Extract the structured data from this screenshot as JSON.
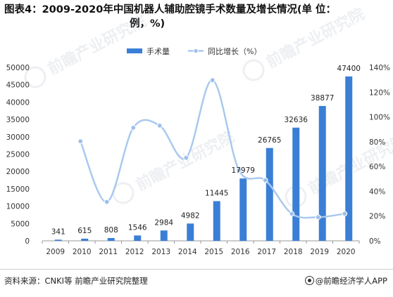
{
  "title": {
    "line1": "图表4：2009-2020年中国机器人辅助腔镜手术数量及增长情况(单 位：",
    "line2": "例，%)"
  },
  "watermark": {
    "text": "前瞻产业研究院"
  },
  "source": "资料来源：CNKI等 前瞻产业研究院整理",
  "brand": "@前瞻经济学人APP",
  "colors": {
    "bar": "#3a7fd6",
    "line": "#a9c9ef",
    "marker": "#9fbfea",
    "axis": "#999999"
  },
  "chart_data": {
    "type": "bar+line",
    "categories": [
      "2009",
      "2010",
      "2011",
      "2012",
      "2013",
      "2014",
      "2015",
      "2016",
      "2017",
      "2018",
      "2019",
      "2020"
    ],
    "series": [
      {
        "name": "手术量",
        "type": "bar",
        "axis": "left",
        "values": [
          341,
          615,
          808,
          1546,
          2984,
          4982,
          11445,
          17979,
          26765,
          32636,
          38877,
          47400
        ]
      },
      {
        "name": "同比增长（%）",
        "type": "line",
        "axis": "right",
        "values": [
          null,
          80.4,
          31.4,
          91.3,
          93.0,
          67.0,
          129.7,
          57.1,
          48.9,
          21.9,
          19.1,
          21.9
        ]
      }
    ],
    "y_left": {
      "min": 0,
      "max": 50000,
      "ticks": [
        0,
        5000,
        10000,
        15000,
        20000,
        25000,
        30000,
        35000,
        40000,
        45000,
        50000
      ]
    },
    "y_right": {
      "min": 0,
      "max": 140,
      "ticks": [
        "0%",
        "20%",
        "40%",
        "60%",
        "80%",
        "100%",
        "120%",
        "140%"
      ]
    },
    "legend_position": "top-center",
    "grid": false
  }
}
